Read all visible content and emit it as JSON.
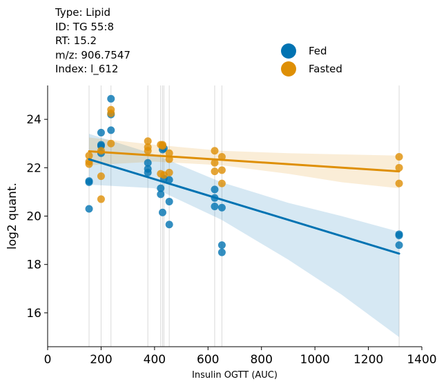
{
  "info": {
    "type": "Type: Lipid",
    "id": "ID: TG 55:8",
    "rt": "RT: 15.2",
    "mz": "m/z: 906.7547",
    "index": "Index: l_612"
  },
  "chart_data": {
    "type": "scatter",
    "xlabel": "Insulin OGTT (AUC)",
    "ylabel": "log2 quant.",
    "xlim": [
      0,
      1400
    ],
    "ylim": [
      14.6,
      25.4
    ],
    "xticks": [
      0,
      200,
      400,
      600,
      800,
      1000,
      1200,
      1400
    ],
    "yticks": [
      16,
      18,
      20,
      22,
      24
    ],
    "vlines": [
      155,
      200,
      237,
      375,
      423,
      430,
      435,
      455,
      625,
      652,
      1315
    ],
    "legend_position": "top-right",
    "series": [
      {
        "name": "Fed",
        "color": "#0173b2",
        "points": [
          [
            155,
            21.45
          ],
          [
            155,
            21.4
          ],
          [
            155,
            20.3
          ],
          [
            200,
            23.45
          ],
          [
            200,
            22.95
          ],
          [
            200,
            22.9
          ],
          [
            200,
            22.6
          ],
          [
            237,
            24.85
          ],
          [
            237,
            24.2
          ],
          [
            237,
            23.55
          ],
          [
            375,
            22.2
          ],
          [
            375,
            21.95
          ],
          [
            375,
            21.8
          ],
          [
            423,
            21.15
          ],
          [
            423,
            20.9
          ],
          [
            430,
            22.75
          ],
          [
            430,
            20.15
          ],
          [
            435,
            22.8
          ],
          [
            435,
            21.55
          ],
          [
            455,
            21.5
          ],
          [
            455,
            20.6
          ],
          [
            455,
            19.65
          ],
          [
            625,
            21.1
          ],
          [
            625,
            20.75
          ],
          [
            625,
            20.4
          ],
          [
            652,
            20.35
          ],
          [
            652,
            18.8
          ],
          [
            652,
            18.5
          ],
          [
            1315,
            19.25
          ],
          [
            1315,
            19.2
          ],
          [
            1315,
            18.8
          ]
        ],
        "fit": [
          [
            155,
            22.35
          ],
          [
            1315,
            18.45
          ]
        ],
        "ci_upper": [
          [
            155,
            23.4
          ],
          [
            400,
            22.55
          ],
          [
            650,
            21.4
          ],
          [
            900,
            20.55
          ],
          [
            1100,
            20.0
          ],
          [
            1315,
            19.35
          ]
        ],
        "ci_lower": [
          [
            155,
            21.3
          ],
          [
            400,
            21.15
          ],
          [
            650,
            19.85
          ],
          [
            900,
            18.2
          ],
          [
            1100,
            16.75
          ],
          [
            1315,
            15.0
          ]
        ]
      },
      {
        "name": "Fasted",
        "color": "#de8f05",
        "points": [
          [
            155,
            22.5
          ],
          [
            155,
            22.25
          ],
          [
            155,
            22.15
          ],
          [
            200,
            22.7
          ],
          [
            200,
            21.65
          ],
          [
            200,
            20.7
          ],
          [
            237,
            24.4
          ],
          [
            237,
            24.25
          ],
          [
            237,
            23.0
          ],
          [
            375,
            23.1
          ],
          [
            375,
            22.85
          ],
          [
            375,
            22.7
          ],
          [
            423,
            22.95
          ],
          [
            423,
            21.75
          ],
          [
            430,
            22.95
          ],
          [
            430,
            22.9
          ],
          [
            435,
            21.7
          ],
          [
            455,
            22.6
          ],
          [
            455,
            22.35
          ],
          [
            455,
            21.8
          ],
          [
            625,
            22.7
          ],
          [
            625,
            22.2
          ],
          [
            625,
            21.85
          ],
          [
            652,
            22.45
          ],
          [
            652,
            21.9
          ],
          [
            652,
            21.35
          ],
          [
            1315,
            22.45
          ],
          [
            1315,
            22.0
          ],
          [
            1315,
            21.35
          ]
        ],
        "fit": [
          [
            155,
            22.68
          ],
          [
            1315,
            21.85
          ]
        ],
        "ci_upper": [
          [
            155,
            23.25
          ],
          [
            400,
            22.95
          ],
          [
            650,
            22.7
          ],
          [
            900,
            22.6
          ],
          [
            1100,
            22.55
          ],
          [
            1315,
            22.5
          ]
        ],
        "ci_lower": [
          [
            155,
            22.1
          ],
          [
            400,
            22.25
          ],
          [
            650,
            22.1
          ],
          [
            900,
            21.75
          ],
          [
            1100,
            21.4
          ],
          [
            1315,
            21.15
          ]
        ]
      }
    ]
  }
}
